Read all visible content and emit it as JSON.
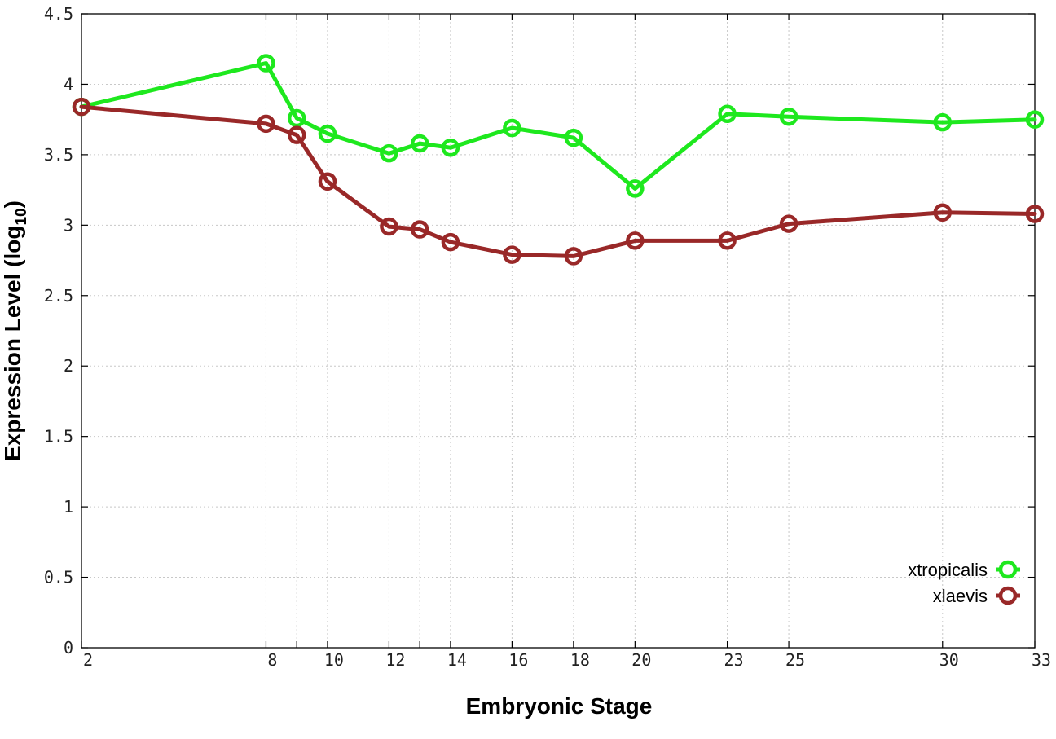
{
  "chart_data": {
    "type": "line",
    "title": "",
    "xlabel": "Embryonic Stage",
    "ylabel_main": "Expression Level (log",
    "ylabel_sub": "10",
    "ylabel_close": ")",
    "ylim": [
      0,
      4.5
    ],
    "y_ticks": [
      0,
      0.5,
      1,
      1.5,
      2,
      2.5,
      3,
      3.5,
      4,
      4.5
    ],
    "y_tick_labels": [
      "0",
      "0.5",
      "1",
      "1.5",
      "2",
      "2.5",
      "3",
      "3.5",
      "4",
      "4.5"
    ],
    "x_ticks": [
      "2",
      "8",
      "9",
      "10",
      "12",
      "13",
      "14",
      "16",
      "18",
      "20",
      "23",
      "25",
      "30",
      "33"
    ],
    "x_tick_labels": [
      "2",
      "8",
      "",
      "10",
      "12",
      "",
      "14",
      "16",
      "18",
      "20",
      "23",
      "25",
      "30",
      "33"
    ],
    "grid": true,
    "legend_position": "bottom-right",
    "series": [
      {
        "name": "xtropicalis",
        "color": "#1ee81e",
        "marker": "circle",
        "x": [
          "2",
          "8",
          "9",
          "10",
          "12",
          "13",
          "14",
          "16",
          "18",
          "20",
          "23",
          "25",
          "30",
          "33"
        ],
        "values": [
          3.84,
          4.15,
          3.76,
          3.65,
          3.51,
          3.58,
          3.55,
          3.69,
          3.62,
          3.26,
          3.79,
          3.77,
          3.73,
          3.75
        ]
      },
      {
        "name": "xlaevis",
        "color": "#992828",
        "marker": "circle",
        "x": [
          "2",
          "8",
          "9",
          "10",
          "12",
          "13",
          "14",
          "16",
          "18",
          "20",
          "23",
          "25",
          "30",
          "33"
        ],
        "values": [
          3.84,
          3.72,
          3.64,
          3.31,
          2.99,
          2.97,
          2.88,
          2.79,
          2.78,
          2.89,
          2.89,
          3.01,
          3.09,
          3.08
        ]
      }
    ]
  }
}
